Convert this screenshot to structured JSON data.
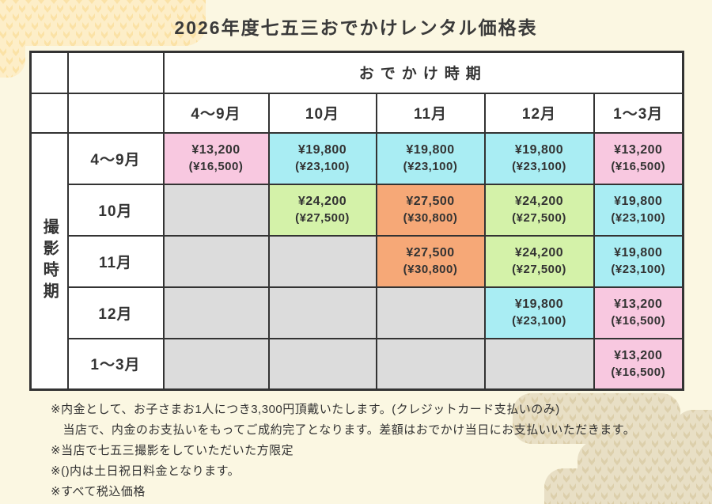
{
  "title": "2026年度七五三おでかけレンタル価格表",
  "table": {
    "outing_header": "おでかけ時期",
    "shooting_header": "撮影時期",
    "columns": [
      "4〜9月",
      "10月",
      "11月",
      "12月",
      "1〜3月"
    ],
    "rows": [
      {
        "label": "4〜9月",
        "cells": [
          {
            "price": "¥13,200",
            "holiday": "(¥16,500)",
            "color": "pink"
          },
          {
            "price": "¥19,800",
            "holiday": "(¥23,100)",
            "color": "cyan"
          },
          {
            "price": "¥19,800",
            "holiday": "(¥23,100)",
            "color": "cyan"
          },
          {
            "price": "¥19,800",
            "holiday": "(¥23,100)",
            "color": "cyan"
          },
          {
            "price": "¥13,200",
            "holiday": "(¥16,500)",
            "color": "pink"
          }
        ]
      },
      {
        "label": "10月",
        "cells": [
          {
            "color": "gray"
          },
          {
            "price": "¥24,200",
            "holiday": "(¥27,500)",
            "color": "green"
          },
          {
            "price": "¥27,500",
            "holiday": "(¥30,800)",
            "color": "orange"
          },
          {
            "price": "¥24,200",
            "holiday": "(¥27,500)",
            "color": "green"
          },
          {
            "price": "¥19,800",
            "holiday": "(¥23,100)",
            "color": "cyan"
          }
        ]
      },
      {
        "label": "11月",
        "cells": [
          {
            "color": "gray"
          },
          {
            "color": "gray"
          },
          {
            "price": "¥27,500",
            "holiday": "(¥30,800)",
            "color": "orange"
          },
          {
            "price": "¥24,200",
            "holiday": "(¥27,500)",
            "color": "green"
          },
          {
            "price": "¥19,800",
            "holiday": "(¥23,100)",
            "color": "cyan"
          }
        ]
      },
      {
        "label": "12月",
        "cells": [
          {
            "color": "gray"
          },
          {
            "color": "gray"
          },
          {
            "color": "gray"
          },
          {
            "price": "¥19,800",
            "holiday": "(¥23,100)",
            "color": "cyan"
          },
          {
            "price": "¥13,200",
            "holiday": "(¥16,500)",
            "color": "pink"
          }
        ]
      },
      {
        "label": "1〜3月",
        "cells": [
          {
            "color": "gray"
          },
          {
            "color": "gray"
          },
          {
            "color": "gray"
          },
          {
            "color": "gray"
          },
          {
            "price": "¥13,200",
            "holiday": "(¥16,500)",
            "color": "pink"
          }
        ]
      }
    ]
  },
  "notes": [
    "※内金として、お子さまお1人につき3,300円頂戴いたします。(クレジットカード支払いのみ)",
    "　当店で、内金のお支払いをもってご成約完了となります。差額はおでかけ当日にお支払いいただきます。",
    "※当店で七五三撮影をしていただいた方限定",
    "※()内は土日祝日料金となります。",
    "※すべて税込価格"
  ],
  "colors": {
    "page_bg": "#fbf7e2",
    "cell_pink": "#f8c8e0",
    "cell_cyan": "#a9edf3",
    "cell_green": "#d4f2a9",
    "cell_orange": "#f6a877",
    "cell_empty": "#dcdcdc",
    "border": "#333333",
    "deco_yellow": "#fbe2a6",
    "deco_yellow_light": "#fdeec8",
    "deco_tan": "#dccfab",
    "deco_tan_light": "#e8dfc5"
  }
}
